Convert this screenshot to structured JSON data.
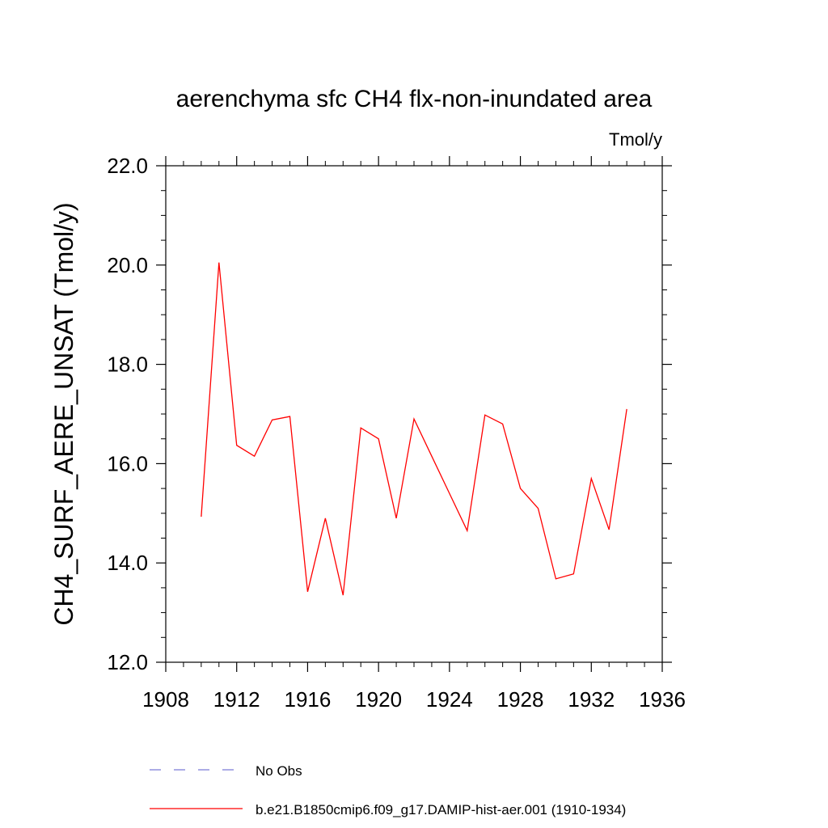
{
  "chart_data": {
    "type": "line",
    "title": "aerenchyma sfc CH4 flx-non-inundated area",
    "units_label": "Tmol/y",
    "ylabel": "CH4_SURF_AERE_UNSAT  (Tmol/y)",
    "xlabel": "",
    "xlim": [
      1908,
      1936
    ],
    "ylim": [
      12.0,
      22.0
    ],
    "x_ticks": [
      "1908",
      "1912",
      "1916",
      "1920",
      "1924",
      "1928",
      "1932",
      "1936"
    ],
    "y_ticks": [
      "12.0",
      "14.0",
      "16.0",
      "18.0",
      "20.0",
      "22.0"
    ],
    "grid": false,
    "legend_position": "bottom",
    "series": [
      {
        "name": "b.e21.B1850cmip6.f09_g17.DAMIP-hist-aer.001 (1910-1934)",
        "color": "#ff0000",
        "style": "solid",
        "x": [
          1910,
          1911,
          1912,
          1913,
          1914,
          1915,
          1916,
          1917,
          1918,
          1919,
          1920,
          1921,
          1922,
          1923,
          1924,
          1925,
          1926,
          1927,
          1928,
          1929,
          1930,
          1931,
          1932,
          1933,
          1934
        ],
        "y": [
          14.93,
          20.05,
          16.37,
          16.15,
          16.88,
          16.95,
          13.42,
          14.9,
          13.35,
          16.72,
          16.5,
          14.9,
          16.9,
          16.15,
          15.4,
          14.65,
          16.98,
          16.8,
          15.5,
          15.1,
          13.68,
          13.78,
          15.7,
          14.67,
          17.1
        ]
      },
      {
        "name": "No Obs",
        "color": "#7b7bd6",
        "style": "dashed",
        "x": [],
        "y": []
      }
    ]
  }
}
